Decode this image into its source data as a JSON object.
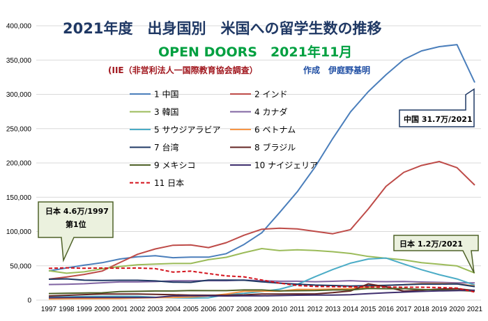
{
  "chart_data": {
    "type": "line",
    "title": "2021年度　出身国別　米国への留学生数の推移",
    "subtitle": "OPEN DOORS　2021年11月",
    "source_red": "(IIE（非営利法人一国際教育協会調査）",
    "source_blue": "作成　伊庭野基明",
    "ylim": [
      0,
      400000
    ],
    "yticks": [
      "0",
      "50,000",
      "100,000",
      "150,000",
      "200,000",
      "250,000",
      "300,000",
      "350,000",
      "400,000"
    ],
    "x": [
      "1997",
      "1998",
      "1999",
      "2000",
      "2001",
      "2002",
      "2003",
      "2004",
      "2005",
      "2006",
      "2007",
      "2008",
      "2009",
      "2010",
      "2011",
      "2012",
      "2013",
      "2014",
      "2015",
      "2016",
      "2017",
      "2018",
      "2019",
      "2020",
      "2021"
    ],
    "grid": true,
    "legend_position": "top-left",
    "series": [
      {
        "name": "1 中国",
        "color": "#4a7ebb",
        "dash": false,
        "values": [
          42500,
          46900,
          51000,
          54500,
          59900,
          63200,
          64800,
          61800,
          62600,
          62600,
          67700,
          81100,
          98200,
          127600,
          158000,
          194000,
          235600,
          274400,
          304000,
          328500,
          350800,
          363300,
          369500,
          372500,
          317300
        ]
      },
      {
        "name": "2 インド",
        "color": "#be4b48",
        "dash": false,
        "values": [
          30600,
          33800,
          37500,
          42300,
          54700,
          66800,
          74600,
          80000,
          80500,
          76500,
          83800,
          94600,
          103300,
          104900,
          103900,
          100300,
          96800,
          102700,
          132900,
          165900,
          186300,
          196300,
          202000,
          193100,
          167600
        ]
      },
      {
        "name": "3 韓国",
        "color": "#9bbb59",
        "dash": false,
        "values": [
          42900,
          39200,
          41200,
          45700,
          49000,
          51500,
          52500,
          53400,
          53400,
          59000,
          62400,
          69100,
          75100,
          72200,
          73400,
          72300,
          70600,
          68000,
          63700,
          61000,
          58700,
          54600,
          52300,
          49800,
          39500
        ]
      },
      {
        "name": "4 カナダ",
        "color": "#8064a2",
        "dash": false,
        "values": [
          22700,
          23000,
          23900,
          25300,
          26500,
          26500,
          27000,
          28100,
          28200,
          28300,
          28300,
          29100,
          28100,
          27500,
          27500,
          26800,
          27400,
          28300,
          27200,
          26900,
          27100,
          26400,
          25900,
          25100,
          25100
        ]
      },
      {
        "name": "5 サウジアラビア",
        "color": "#4bacc6",
        "dash": false,
        "values": [
          4500,
          4800,
          5200,
          5500,
          5600,
          5500,
          4200,
          3500,
          3000,
          3400,
          7900,
          9800,
          12600,
          15800,
          22700,
          34100,
          44600,
          53900,
          59900,
          61300,
          52600,
          44400,
          37100,
          30900,
          21900
        ]
      },
      {
        "name": "6 ベトナム",
        "color": "#f79646",
        "dash": false,
        "values": [
          1600,
          1900,
          2000,
          2100,
          2300,
          3000,
          3600,
          4000,
          4600,
          6000,
          8800,
          12800,
          13100,
          13100,
          15600,
          15600,
          16100,
          16600,
          19000,
          21400,
          22400,
          24300,
          24400,
          23800,
          20700
        ]
      },
      {
        "name": "7 台湾",
        "color": "#1f3864",
        "dash": false,
        "values": [
          30500,
          31000,
          29000,
          28600,
          28900,
          28900,
          28000,
          26200,
          25900,
          29100,
          29100,
          29000,
          26700,
          24800,
          23200,
          21900,
          21300,
          20500,
          21100,
          21500,
          22400,
          23300,
          23400,
          23700,
          19700
        ]
      },
      {
        "name": "8 ブラジル",
        "color": "#632523",
        "dash": false,
        "values": [
          6000,
          7000,
          8000,
          8800,
          8800,
          8800,
          8300,
          7800,
          7200,
          7100,
          7100,
          7600,
          8800,
          8800,
          9000,
          9000,
          10900,
          13300,
          23700,
          19400,
          13100,
          14600,
          16100,
          16700,
          14000
        ]
      },
      {
        "name": "9 メキシコ",
        "color": "#4f6228",
        "dash": false,
        "values": [
          9500,
          10000,
          10500,
          10700,
          12500,
          12800,
          13300,
          13300,
          13900,
          13800,
          13800,
          14800,
          14800,
          13400,
          13700,
          13900,
          14800,
          14800,
          17100,
          16700,
          16800,
          15500,
          14800,
          14300,
          13000
        ]
      },
      {
        "name": "10 ナイジェリア",
        "color": "#3f2f6e",
        "dash": false,
        "values": [
          3500,
          3700,
          3800,
          3900,
          3800,
          3800,
          4000,
          6100,
          6300,
          6200,
          6000,
          6200,
          6200,
          6600,
          7100,
          7300,
          7300,
          7900,
          9400,
          10700,
          11700,
          12700,
          13400,
          13800,
          14500
        ]
      },
      {
        "name": "11 日本",
        "color": "#d3101a",
        "dash": true,
        "values": [
          46300,
          47100,
          46400,
          46800,
          46500,
          46800,
          45900,
          40800,
          42200,
          38700,
          35300,
          33900,
          29300,
          24800,
          21300,
          19900,
          19600,
          19300,
          19100,
          19100,
          18800,
          18800,
          18400,
          17600,
          11800
        ]
      }
    ],
    "callouts": {
      "china": "中国 31.7万/2021",
      "japan_1997_line1": "日本 4.6万/1997",
      "japan_1997_line2": "第1位",
      "japan_2021": "日本 1.2万/2021"
    }
  }
}
